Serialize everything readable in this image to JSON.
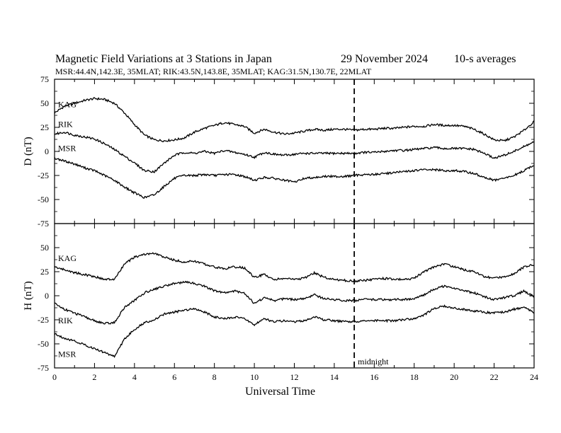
{
  "header": {
    "title": "Magnetic Field Variations at 3 Stations in Japan",
    "date_day": "29 November",
    "date_year": "2024",
    "averaging": "10-s averages",
    "stations_line": "MSR:44.4N,142.3E, 35MLAT;  RIK:43.5N,143.8E, 35MLAT;  KAG:31.5N,130.7E, 22MLAT"
  },
  "chart_data": [
    {
      "type": "line",
      "panel": "top",
      "ylabel": "D (nT)",
      "ylim": [
        -75,
        75
      ],
      "yticks": [
        -75,
        -50,
        -25,
        0,
        25,
        50,
        75
      ],
      "xlim": [
        0,
        24
      ],
      "grid": false,
      "marker": {
        "x": 15,
        "style": "dashed"
      },
      "series": [
        {
          "name": "KAG",
          "x": [
            0,
            0.5,
            1,
            1.5,
            2,
            2.5,
            3,
            3.5,
            4,
            4.5,
            5,
            5.5,
            6,
            6.5,
            7,
            7.5,
            8,
            8.5,
            9,
            9.5,
            10,
            10.5,
            11,
            11.5,
            12,
            12.5,
            13,
            13.5,
            14,
            14.5,
            15,
            15.5,
            16,
            16.5,
            17,
            17.5,
            18,
            18.5,
            19,
            19.5,
            20,
            20.5,
            21,
            21.5,
            22,
            22.5,
            23,
            23.5,
            24
          ],
          "y": [
            40,
            47,
            50,
            53,
            55,
            54,
            50,
            40,
            28,
            17,
            12,
            11,
            12,
            14,
            20,
            24,
            27,
            30,
            28,
            26,
            19,
            23,
            20,
            18,
            19,
            21,
            23,
            22,
            23,
            23,
            22,
            23,
            23,
            24,
            24,
            25,
            26,
            26,
            28,
            27,
            27,
            26,
            23,
            18,
            12,
            11,
            15,
            22,
            31
          ]
        },
        {
          "name": "RIK",
          "x": [
            0,
            0.5,
            1,
            1.5,
            2,
            2.5,
            3,
            3.5,
            4,
            4.5,
            5,
            5.5,
            6,
            6.5,
            7,
            7.5,
            8,
            8.5,
            9,
            9.5,
            10,
            10.5,
            11,
            11.5,
            12,
            12.5,
            13,
            13.5,
            14,
            14.5,
            15,
            15.5,
            16,
            16.5,
            17,
            17.5,
            18,
            18.5,
            19,
            19.5,
            20,
            20.5,
            21,
            21.5,
            22,
            22.5,
            23,
            23.5,
            24
          ],
          "y": [
            18,
            20,
            17,
            15,
            13,
            8,
            2,
            -5,
            -12,
            -20,
            -21,
            -12,
            -4,
            -1,
            -2,
            0,
            -2,
            1,
            -1,
            -3,
            -6,
            -1,
            -3,
            -4,
            -3,
            -2,
            -2,
            -2,
            -2,
            -2,
            -2,
            -1,
            -1,
            0,
            1,
            1,
            2,
            3,
            4,
            3,
            3,
            3,
            2,
            -2,
            -7,
            -4,
            0,
            5,
            10
          ]
        },
        {
          "name": "MSR",
          "x": [
            0,
            0.5,
            1,
            1.5,
            2,
            2.5,
            3,
            3.5,
            4,
            4.5,
            5,
            5.5,
            6,
            6.5,
            7,
            7.5,
            8,
            8.5,
            9,
            9.5,
            10,
            10.5,
            11,
            11.5,
            12,
            12.5,
            13,
            13.5,
            14,
            14.5,
            15,
            15.5,
            16,
            16.5,
            17,
            17.5,
            18,
            18.5,
            19,
            19.5,
            20,
            20.5,
            21,
            21.5,
            22,
            22.5,
            23,
            23.5,
            24
          ],
          "y": [
            -7,
            -10,
            -13,
            -17,
            -20,
            -25,
            -30,
            -37,
            -43,
            -48,
            -45,
            -36,
            -28,
            -25,
            -25,
            -24,
            -25,
            -24,
            -24,
            -26,
            -30,
            -27,
            -28,
            -30,
            -32,
            -28,
            -27,
            -26,
            -26,
            -26,
            -25,
            -24,
            -24,
            -23,
            -22,
            -21,
            -20,
            -19,
            -19,
            -20,
            -20,
            -21,
            -23,
            -27,
            -30,
            -28,
            -25,
            -20,
            -14
          ]
        }
      ]
    },
    {
      "type": "line",
      "panel": "bottom",
      "ylabel": "H (nT)",
      "xlabel": "Universal Time",
      "ylim": [
        -75,
        75
      ],
      "yticks": [
        -75,
        -50,
        -25,
        0,
        25,
        50
      ],
      "xlim": [
        0,
        24
      ],
      "xticks": [
        0,
        2,
        4,
        6,
        8,
        10,
        12,
        14,
        16,
        18,
        20,
        22,
        24
      ],
      "grid": false,
      "marker": {
        "x": 15,
        "style": "dashed",
        "label": "midnight"
      },
      "series": [
        {
          "name": "KAG",
          "x": [
            0,
            0.5,
            1,
            1.5,
            2,
            2.5,
            3,
            3.5,
            4,
            4.5,
            5,
            5.5,
            6,
            6.5,
            7,
            7.5,
            8,
            8.5,
            9,
            9.5,
            10,
            10.5,
            11,
            11.5,
            12,
            12.5,
            13,
            13.5,
            14,
            14.5,
            15,
            15.5,
            16,
            16.5,
            17,
            17.5,
            18,
            18.5,
            19,
            19.5,
            20,
            20.5,
            21,
            21.5,
            22,
            22.5,
            23,
            23.5,
            24
          ],
          "y": [
            30,
            27,
            24,
            22,
            20,
            17,
            17,
            33,
            40,
            43,
            44,
            40,
            37,
            35,
            36,
            33,
            30,
            28,
            30,
            29,
            19,
            22,
            17,
            18,
            17,
            18,
            24,
            19,
            17,
            16,
            15,
            16,
            17,
            18,
            17,
            17,
            18,
            25,
            30,
            33,
            30,
            27,
            25,
            20,
            18,
            20,
            23,
            30,
            32
          ]
        },
        {
          "name": "RIK",
          "x": [
            0,
            0.5,
            1,
            1.5,
            2,
            2.5,
            3,
            3.5,
            4,
            4.5,
            5,
            5.5,
            6,
            6.5,
            7,
            7.5,
            8,
            8.5,
            9,
            9.5,
            10,
            10.5,
            11,
            11.5,
            12,
            12.5,
            13,
            13.5,
            14,
            14.5,
            15,
            15.5,
            16,
            16.5,
            17,
            17.5,
            18,
            18.5,
            19,
            19.5,
            20,
            20.5,
            21,
            21.5,
            22,
            22.5,
            23,
            23.5,
            24
          ],
          "y": [
            -8,
            -14,
            -18,
            -22,
            -26,
            -29,
            -28,
            -12,
            -5,
            3,
            7,
            10,
            13,
            14,
            13,
            10,
            5,
            3,
            5,
            3,
            -8,
            -2,
            -5,
            -3,
            -4,
            -3,
            1,
            -3,
            -4,
            -5,
            -5,
            -4,
            -4,
            -4,
            -4,
            -4,
            -3,
            1,
            7,
            10,
            8,
            5,
            3,
            -1,
            -4,
            -2,
            0,
            5,
            -1
          ]
        },
        {
          "name": "MSR",
          "x": [
            0,
            0.5,
            1,
            1.5,
            2,
            2.5,
            3,
            3.5,
            4,
            4.5,
            5,
            5.5,
            6,
            6.5,
            7,
            7.5,
            8,
            8.5,
            9,
            9.5,
            10,
            10.5,
            11,
            11.5,
            12,
            12.5,
            13,
            13.5,
            14,
            14.5,
            15,
            15.5,
            16,
            16.5,
            17,
            17.5,
            18,
            18.5,
            19,
            19.5,
            20,
            20.5,
            21,
            21.5,
            22,
            22.5,
            23,
            23.5,
            24
          ],
          "y": [
            -40,
            -44,
            -47,
            -51,
            -55,
            -59,
            -63,
            -45,
            -35,
            -28,
            -25,
            -19,
            -17,
            -15,
            -13,
            -17,
            -22,
            -24,
            -22,
            -24,
            -30,
            -24,
            -27,
            -26,
            -27,
            -26,
            -22,
            -25,
            -26,
            -27,
            -27,
            -26,
            -26,
            -26,
            -26,
            -25,
            -24,
            -20,
            -13,
            -11,
            -13,
            -14,
            -16,
            -17,
            -18,
            -17,
            -14,
            -12,
            -18
          ]
        }
      ]
    }
  ]
}
